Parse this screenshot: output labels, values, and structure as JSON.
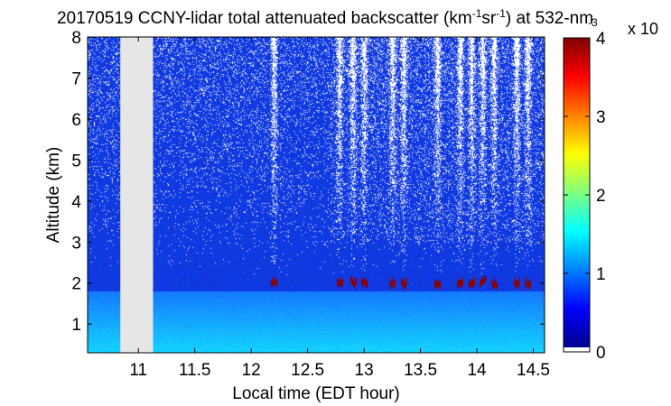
{
  "chart_data": {
    "type": "heatmap",
    "title_parts": {
      "main": "20170519 CCNY-lidar total attenuated backscatter (km",
      "exp1": "-1",
      "mid": "sr",
      "exp2": "-1",
      "tail": ") at 532-nm"
    },
    "xlabel": "Local time (EDT hour)",
    "ylabel": "Altitude (km)",
    "xlim": [
      10.55,
      14.6
    ],
    "ylim": [
      0.3,
      8
    ],
    "xticks": [
      "11",
      "11.5",
      "12",
      "12.5",
      "13",
      "13.5",
      "14",
      "14.5"
    ],
    "xtick_values": [
      11,
      11.5,
      12,
      12.5,
      13,
      13.5,
      14,
      14.5
    ],
    "yticks": [
      "1",
      "2",
      "3",
      "4",
      "5",
      "6",
      "7",
      "8"
    ],
    "ytick_values": [
      1,
      2,
      3,
      4,
      5,
      6,
      7,
      8
    ],
    "data_gap": [
      10.84,
      11.13
    ],
    "colorbar": {
      "range": [
        0,
        4
      ],
      "ticks": [
        "0",
        "1",
        "2",
        "3",
        "4"
      ],
      "tick_values": [
        0,
        1,
        2,
        3,
        4
      ],
      "multiplier_base": "x 10",
      "multiplier_exp": "-3",
      "colormap": "jet"
    },
    "features": {
      "boundary_layer_top_km": 1.8,
      "cloud_base_km": [
        1.8,
        2.1
      ],
      "cloud_times": [
        12.2,
        12.78,
        12.9,
        13.0,
        13.25,
        13.35,
        13.65,
        13.85,
        13.95,
        14.05,
        14.15,
        14.35,
        14.45
      ]
    }
  },
  "colors": {
    "gap": "#e6e6e6",
    "background_signal": "#1030d8",
    "boundary_layer": "#2a8cff",
    "cloud": "#8b0000"
  }
}
